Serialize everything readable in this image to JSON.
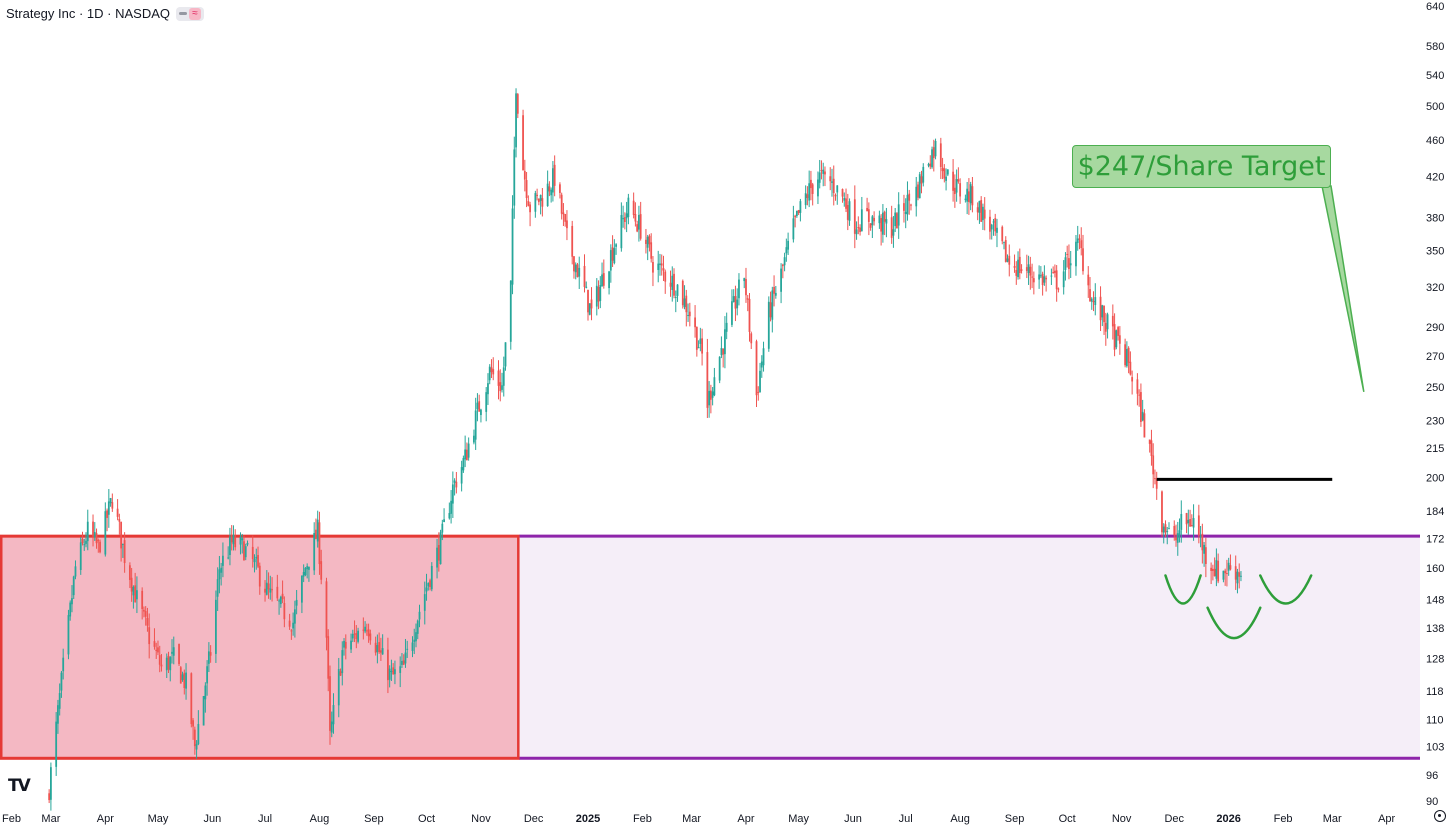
{
  "header": {
    "symbol_title": "Strategy Inc · 1D · NASDAQ",
    "indicator_glyph": "≈"
  },
  "annotation": {
    "target_label": "$247/Share Target"
  },
  "icons": {
    "logo": "tradingview-logo-icon",
    "settings": "gear-icon",
    "logo_text": "TV"
  },
  "colors": {
    "up_candle": "#26a69a",
    "down_candle": "#ef5350",
    "red_zone_fill": "#f4b8c3",
    "red_zone_border": "#e53935",
    "purple_zone_fill": "#f5eef8",
    "purple_zone_border": "#8e24aa",
    "resistance_line": "#000000",
    "pattern_curves": "#2e9e3a",
    "target_box_fill": "#a7d9a0",
    "target_box_border": "#4caf50"
  },
  "chart_data": {
    "type": "candlestick",
    "scale": "log",
    "y_range": [
      90,
      640
    ],
    "y_ticks": [
      640,
      580,
      540,
      500,
      460,
      420,
      380,
      350,
      320,
      290,
      270,
      250,
      230,
      215,
      200,
      184,
      172,
      160,
      148,
      138,
      128,
      118,
      110,
      103,
      96,
      90
    ],
    "x_range": [
      "2024-02-01",
      "2026-04-20"
    ],
    "x_ticks": [
      {
        "label": "Feb",
        "date": "2024-02-01"
      },
      {
        "label": "Mar",
        "date": "2024-03-01"
      },
      {
        "label": "Apr",
        "date": "2024-04-01"
      },
      {
        "label": "May",
        "date": "2024-05-01"
      },
      {
        "label": "Jun",
        "date": "2024-06-01"
      },
      {
        "label": "Jul",
        "date": "2024-07-01"
      },
      {
        "label": "Aug",
        "date": "2024-08-01"
      },
      {
        "label": "Sep",
        "date": "2024-09-01"
      },
      {
        "label": "Oct",
        "date": "2024-10-01"
      },
      {
        "label": "Nov",
        "date": "2024-11-01"
      },
      {
        "label": "Dec",
        "date": "2024-12-01"
      },
      {
        "label": "2025",
        "date": "2025-01-01",
        "bold": true
      },
      {
        "label": "Feb",
        "date": "2025-02-01"
      },
      {
        "label": "Mar",
        "date": "2025-03-01"
      },
      {
        "label": "Apr",
        "date": "2025-04-01"
      },
      {
        "label": "May",
        "date": "2025-05-01"
      },
      {
        "label": "Jun",
        "date": "2025-06-01"
      },
      {
        "label": "Jul",
        "date": "2025-07-01"
      },
      {
        "label": "Aug",
        "date": "2025-08-01"
      },
      {
        "label": "Sep",
        "date": "2025-09-01"
      },
      {
        "label": "Oct",
        "date": "2025-10-01"
      },
      {
        "label": "Nov",
        "date": "2025-11-01"
      },
      {
        "label": "Dec",
        "date": "2025-12-01"
      },
      {
        "label": "2026",
        "date": "2026-01-01",
        "bold": true
      },
      {
        "label": "Feb",
        "date": "2026-02-01"
      },
      {
        "label": "Mar",
        "date": "2026-03-01"
      },
      {
        "label": "Apr",
        "date": "2026-04-01"
      }
    ],
    "price_path": [
      [
        "2024-02-29",
        93
      ],
      [
        "2024-03-08",
        125
      ],
      [
        "2024-03-15",
        160
      ],
      [
        "2024-03-22",
        175
      ],
      [
        "2024-03-28",
        168
      ],
      [
        "2024-04-05",
        190
      ],
      [
        "2024-04-12",
        165
      ],
      [
        "2024-04-19",
        148
      ],
      [
        "2024-04-26",
        135
      ],
      [
        "2024-05-03",
        125
      ],
      [
        "2024-05-10",
        128
      ],
      [
        "2024-05-17",
        120
      ],
      [
        "2024-05-22",
        103
      ],
      [
        "2024-05-31",
        130
      ],
      [
        "2024-06-05",
        160
      ],
      [
        "2024-06-12",
        170
      ],
      [
        "2024-06-19",
        168
      ],
      [
        "2024-06-26",
        160
      ],
      [
        "2024-07-03",
        150
      ],
      [
        "2024-07-10",
        145
      ],
      [
        "2024-07-17",
        140
      ],
      [
        "2024-07-24",
        160
      ],
      [
        "2024-07-31",
        175
      ],
      [
        "2024-08-05",
        135
      ],
      [
        "2024-08-07",
        105
      ],
      [
        "2024-08-14",
        130
      ],
      [
        "2024-08-21",
        135
      ],
      [
        "2024-08-28",
        140
      ],
      [
        "2024-09-04",
        130
      ],
      [
        "2024-09-11",
        122
      ],
      [
        "2024-09-18",
        125
      ],
      [
        "2024-09-25",
        140
      ],
      [
        "2024-10-02",
        155
      ],
      [
        "2024-10-09",
        170
      ],
      [
        "2024-10-16",
        195
      ],
      [
        "2024-10-23",
        210
      ],
      [
        "2024-10-30",
        235
      ],
      [
        "2024-11-06",
        260
      ],
      [
        "2024-11-13",
        250
      ],
      [
        "2024-11-18",
        320
      ],
      [
        "2024-11-21",
        530
      ],
      [
        "2024-11-25",
        430
      ],
      [
        "2024-11-29",
        390
      ],
      [
        "2024-12-06",
        400
      ],
      [
        "2024-12-13",
        420
      ],
      [
        "2024-12-20",
        360
      ],
      [
        "2024-12-27",
        330
      ],
      [
        "2025-01-03",
        300
      ],
      [
        "2025-01-10",
        330
      ],
      [
        "2025-01-17",
        360
      ],
      [
        "2025-01-24",
        390
      ],
      [
        "2025-01-31",
        370
      ],
      [
        "2025-02-07",
        340
      ],
      [
        "2025-02-14",
        330
      ],
      [
        "2025-02-21",
        320
      ],
      [
        "2025-02-28",
        300
      ],
      [
        "2025-03-07",
        270
      ],
      [
        "2025-03-10",
        240
      ],
      [
        "2025-03-17",
        270
      ],
      [
        "2025-03-24",
        300
      ],
      [
        "2025-03-31",
        330
      ],
      [
        "2025-04-07",
        245
      ],
      [
        "2025-04-14",
        300
      ],
      [
        "2025-04-21",
        330
      ],
      [
        "2025-04-28",
        370
      ],
      [
        "2025-05-05",
        400
      ],
      [
        "2025-05-12",
        420
      ],
      [
        "2025-05-19",
        415
      ],
      [
        "2025-05-26",
        400
      ],
      [
        "2025-06-02",
        375
      ],
      [
        "2025-06-09",
        380
      ],
      [
        "2025-06-16",
        375
      ],
      [
        "2025-06-23",
        370
      ],
      [
        "2025-06-30",
        390
      ],
      [
        "2025-07-07",
        405
      ],
      [
        "2025-07-14",
        440
      ],
      [
        "2025-07-18",
        452
      ],
      [
        "2025-07-25",
        420
      ],
      [
        "2025-08-01",
        405
      ],
      [
        "2025-08-08",
        400
      ],
      [
        "2025-08-15",
        380
      ],
      [
        "2025-08-22",
        360
      ],
      [
        "2025-08-29",
        340
      ],
      [
        "2025-09-05",
        335
      ],
      [
        "2025-09-12",
        330
      ],
      [
        "2025-09-19",
        325
      ],
      [
        "2025-09-26",
        325
      ],
      [
        "2025-10-03",
        345
      ],
      [
        "2025-10-08",
        355
      ],
      [
        "2025-10-15",
        310
      ],
      [
        "2025-10-22",
        295
      ],
      [
        "2025-10-29",
        280
      ],
      [
        "2025-11-05",
        265
      ],
      [
        "2025-11-12",
        235
      ],
      [
        "2025-11-19",
        205
      ],
      [
        "2025-11-24",
        180
      ],
      [
        "2025-12-01",
        170
      ],
      [
        "2025-12-05",
        178
      ],
      [
        "2025-12-12",
        180
      ],
      [
        "2025-12-19",
        165
      ],
      [
        "2025-12-26",
        158
      ],
      [
        "2026-01-02",
        160
      ],
      [
        "2026-01-08",
        158
      ]
    ],
    "zones": [
      {
        "name": "red-zone",
        "from": "2024-02-01",
        "to": "2024-11-23",
        "low": 100,
        "high": 173
      },
      {
        "name": "purple-zone",
        "from": "2024-11-23",
        "to": "2026-04-20",
        "low": 100,
        "high": 173
      }
    ],
    "resistance_line": {
      "from": "2025-11-21",
      "to": "2026-03-01",
      "price": 199
    },
    "target": {
      "price": 247,
      "date": "2026-03-19"
    },
    "pattern": "inverse head and shoulders",
    "grid": false
  }
}
